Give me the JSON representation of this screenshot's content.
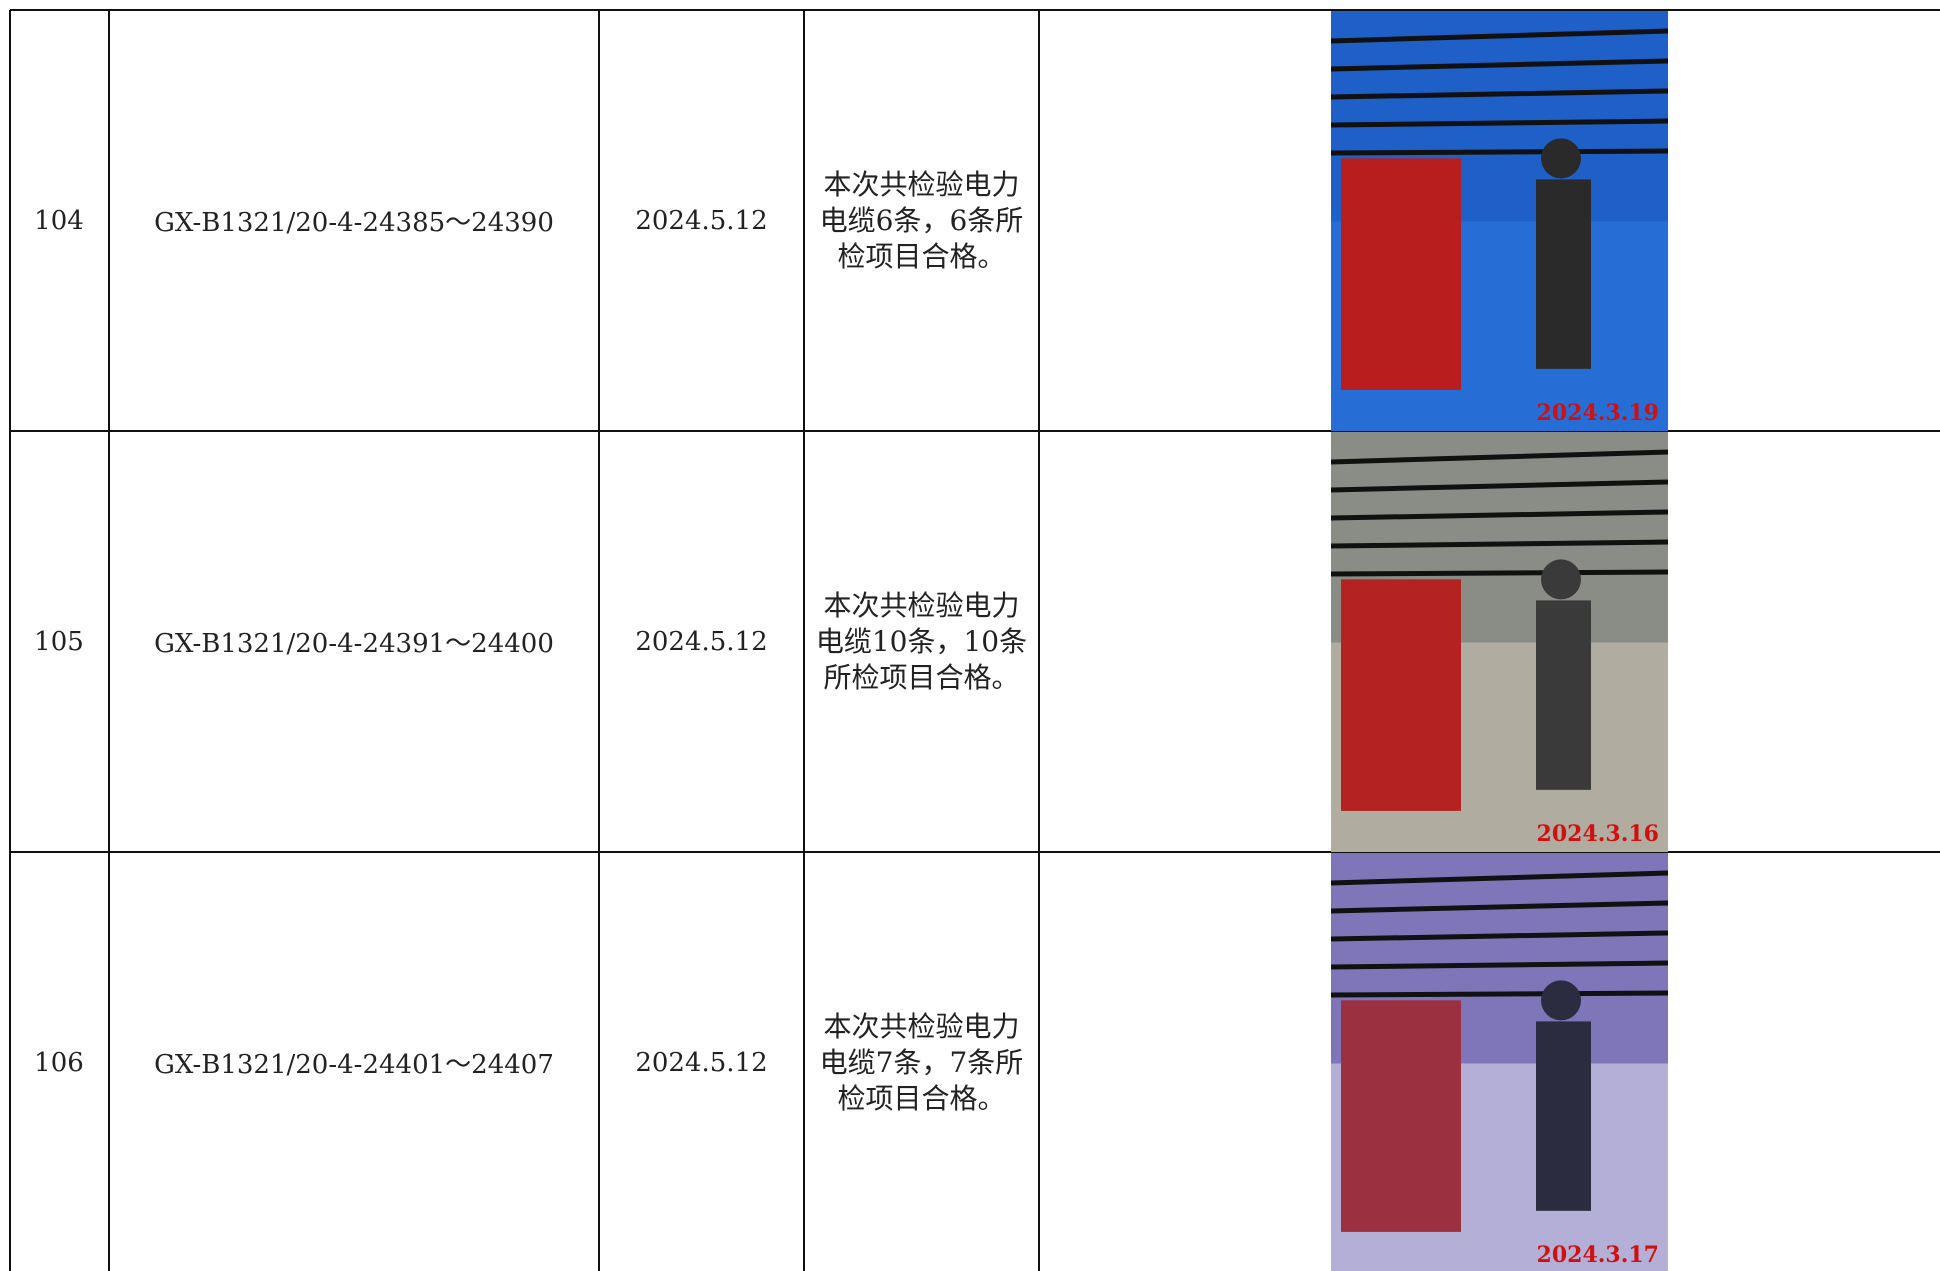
{
  "table": {
    "rows": [
      {
        "no": "104",
        "code": "GX-B1321/20-4-24385～24390",
        "date": "2024.5.12",
        "result": "本次共检验电力电缆6条，6条所检项目合格。",
        "photo_date": "2024.3.19"
      },
      {
        "no": "105",
        "code": "GX-B1321/20-4-24391～24400",
        "date": "2024.5.12",
        "result": "本次共检验电力电缆10条，10条所检项目合格。",
        "photo_date": "2024.3.16"
      },
      {
        "no": "106",
        "code": "GX-B1321/20-4-24401～24407",
        "date": "2024.5.12",
        "result": "本次共检验电力电缆7条，7条所检项目合格。",
        "photo_date": "2024.3.17"
      }
    ]
  }
}
